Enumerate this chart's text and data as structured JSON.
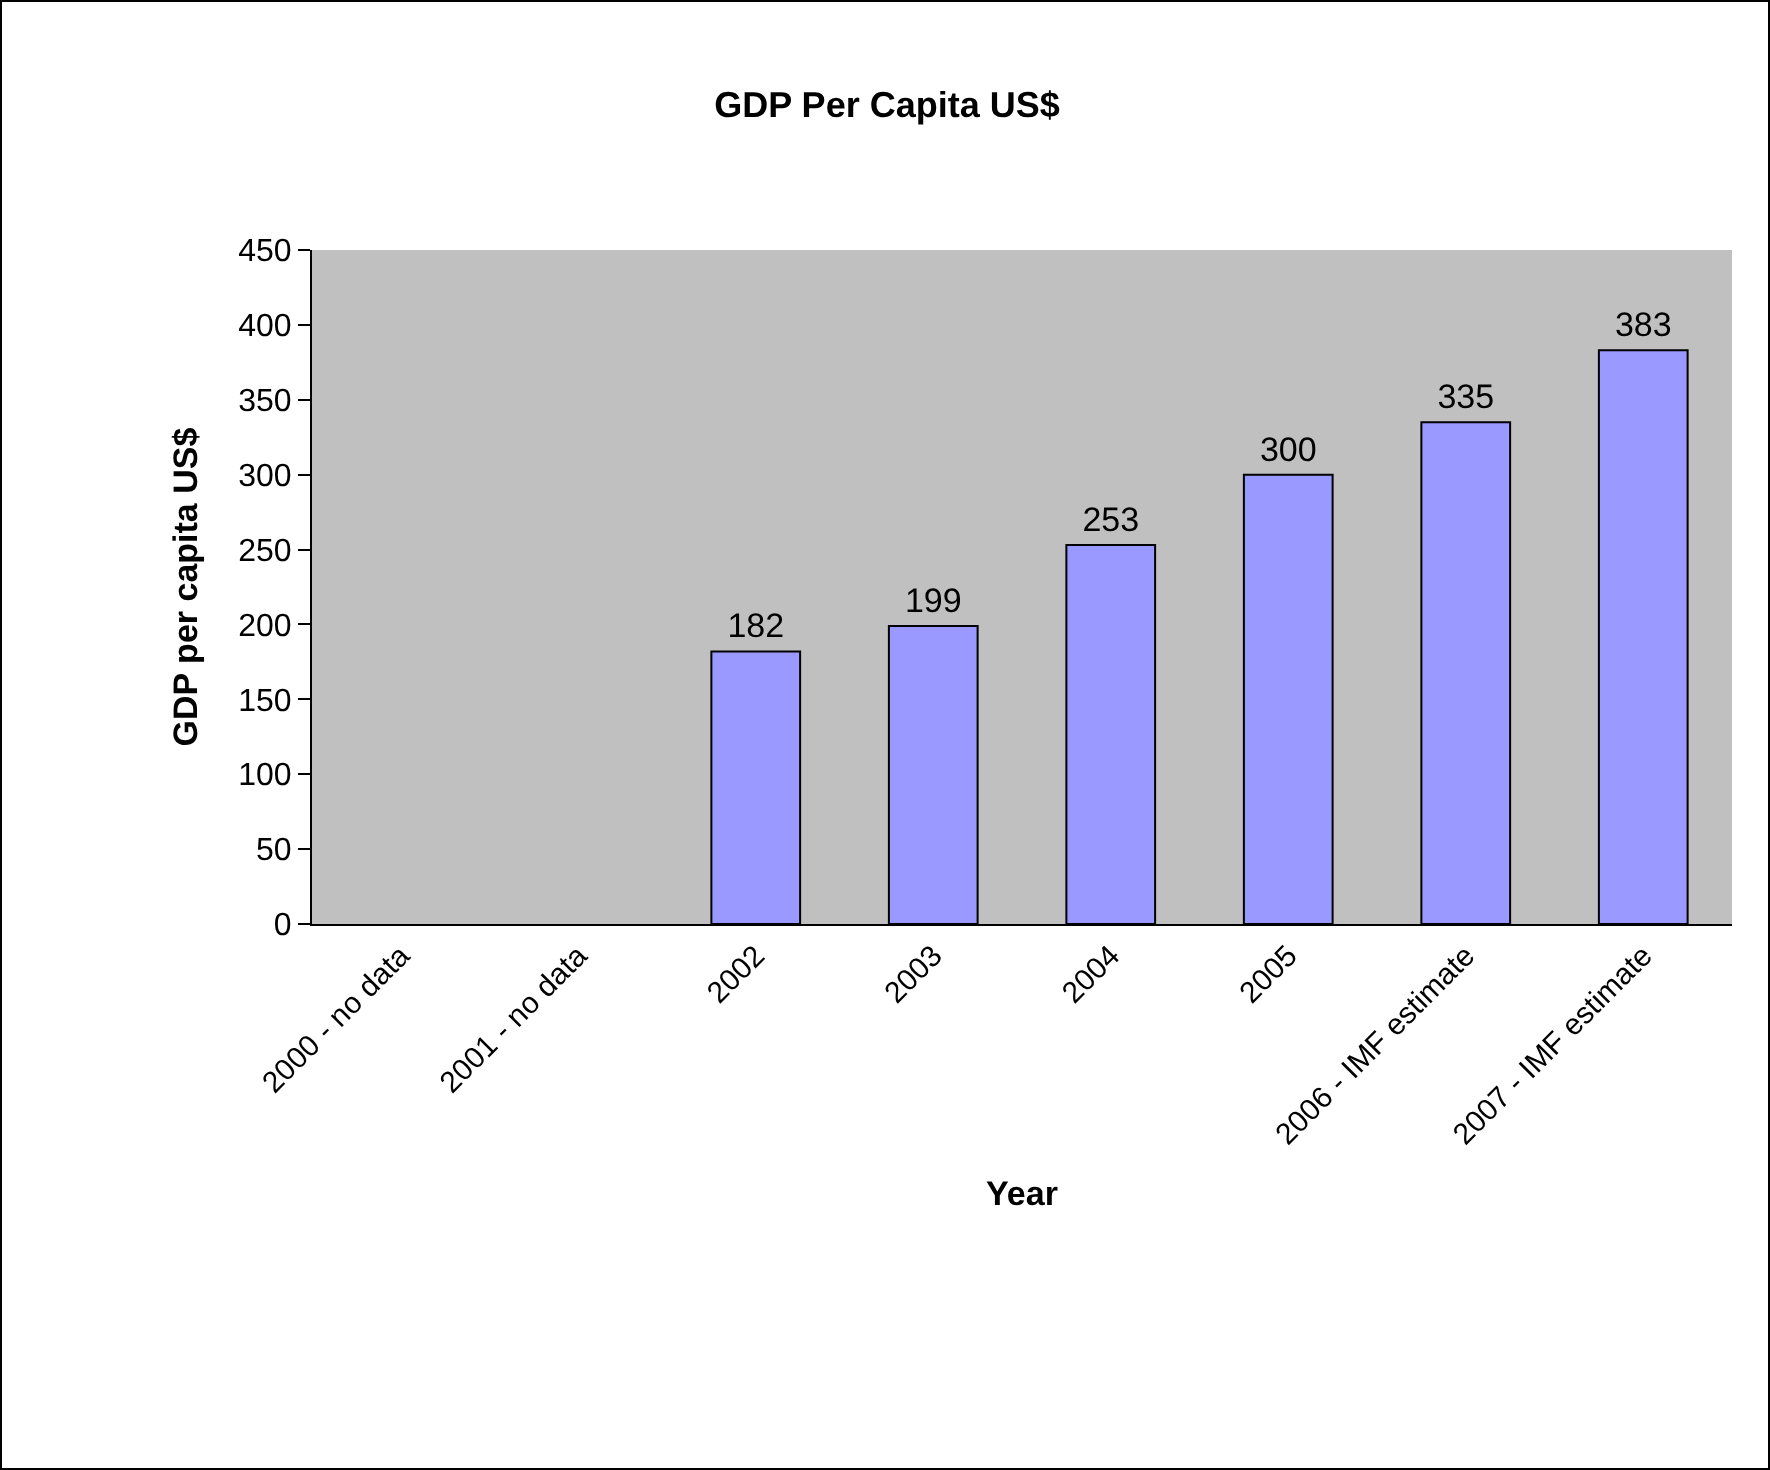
{
  "chart_data": {
    "type": "bar",
    "title": "GDP Per Capita US$",
    "xlabel": "Year",
    "ylabel": "GDP per capita US$",
    "categories": [
      "2000 - no data",
      "2001 - no data",
      "2002",
      "2003",
      "2004",
      "2005",
      "2006 - IMF estimate",
      "2007 - IMF estimate"
    ],
    "values": [
      null,
      null,
      182,
      199,
      253,
      300,
      335,
      383
    ],
    "color": "#9999ff",
    "ylim": [
      0,
      450
    ],
    "yticks": [
      0,
      50,
      100,
      150,
      200,
      250,
      300,
      350,
      400,
      450
    ],
    "grid": false,
    "data_labels": true,
    "legend": false
  }
}
